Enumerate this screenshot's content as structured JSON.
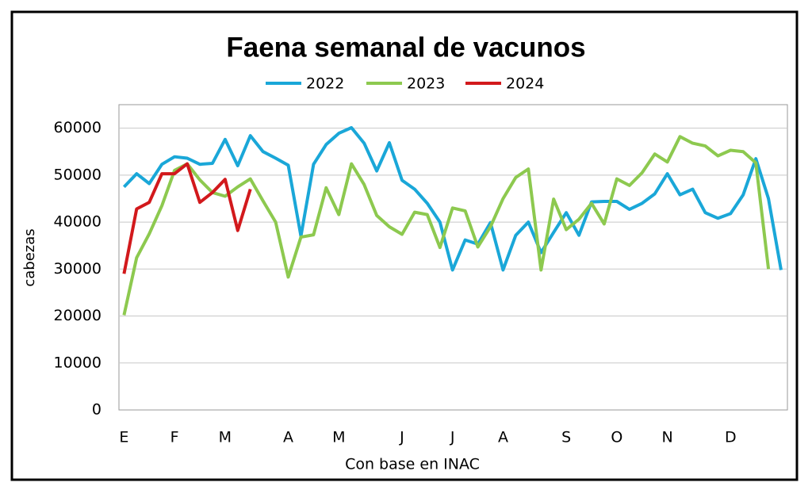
{
  "chart_data": {
    "type": "line",
    "title": "Faena semanal de vacunos",
    "y_label": "cabezas",
    "x_label": "Con base en INAC",
    "x": [
      1,
      2,
      3,
      4,
      5,
      6,
      7,
      8,
      9,
      10,
      11,
      12,
      13,
      14,
      15,
      16,
      17,
      18,
      19,
      20,
      21,
      22,
      23,
      24,
      25,
      26,
      27,
      28,
      29,
      30,
      31,
      32,
      33,
      34,
      35,
      36,
      37,
      38,
      39,
      40,
      41,
      42,
      43,
      44,
      45,
      46,
      47,
      48,
      49,
      50,
      51,
      52,
      53
    ],
    "xlim": [
      0.6,
      53.5
    ],
    "xticks": [
      {
        "value": 1,
        "label": "E"
      },
      {
        "value": 5,
        "label": "F"
      },
      {
        "value": 9,
        "label": "M"
      },
      {
        "value": 14,
        "label": "A"
      },
      {
        "value": 18,
        "label": "M"
      },
      {
        "value": 23,
        "label": "J"
      },
      {
        "value": 27,
        "label": "J"
      },
      {
        "value": 31,
        "label": "A"
      },
      {
        "value": 36,
        "label": "S"
      },
      {
        "value": 40,
        "label": "O"
      },
      {
        "value": 44,
        "label": "N"
      },
      {
        "value": 49,
        "label": "D"
      }
    ],
    "ylim": [
      0,
      65000
    ],
    "yticks": [
      0,
      10000,
      20000,
      30000,
      40000,
      50000,
      60000
    ],
    "grid": true,
    "series": [
      {
        "name": "2022",
        "color": "#1aa7d8",
        "values": [
          47500,
          50300,
          48200,
          52300,
          53900,
          53600,
          52300,
          52500,
          57600,
          52000,
          58400,
          55000,
          53600,
          52100,
          37000,
          52300,
          56500,
          58900,
          60100,
          56800,
          50900,
          56900,
          48900,
          47000,
          44000,
          40000,
          29800,
          36200,
          35300,
          39900,
          29800,
          37200,
          40000,
          33500,
          37800,
          42000,
          37200,
          44300,
          44400,
          44400,
          42700,
          44000,
          46000,
          50300,
          45800,
          47000,
          42000,
          40800,
          41800,
          45800,
          53500,
          45000,
          29800
        ]
      },
      {
        "name": "2023",
        "color": "#8dc94f",
        "values": [
          20200,
          32400,
          37500,
          43500,
          51000,
          52400,
          49000,
          46300,
          45500,
          47500,
          49200,
          44500,
          40000,
          28300,
          36800,
          37300,
          47300,
          41600,
          52400,
          48000,
          41400,
          39000,
          37400,
          42100,
          41600,
          34600,
          43000,
          42400,
          34700,
          39000,
          45000,
          49500,
          51300,
          29800,
          44900,
          38400,
          40600,
          44000,
          39600,
          49200,
          47800,
          50500,
          54500,
          52800,
          58200,
          56800,
          56200,
          54100,
          55300,
          55000,
          52600,
          30000,
          null
        ]
      },
      {
        "name": "2024",
        "color": "#d2191c",
        "values": [
          29000,
          42800,
          44200,
          50300,
          50300,
          52400,
          44200,
          46300,
          49100,
          38200,
          47000,
          null,
          null,
          null,
          null,
          null,
          null,
          null,
          null,
          null,
          null,
          null,
          null,
          null,
          null,
          null,
          null,
          null,
          null,
          null,
          null,
          null,
          null,
          null,
          null,
          null,
          null,
          null,
          null,
          null,
          null,
          null,
          null,
          null,
          null,
          null,
          null,
          null,
          null,
          null,
          null,
          null,
          null
        ]
      }
    ]
  }
}
